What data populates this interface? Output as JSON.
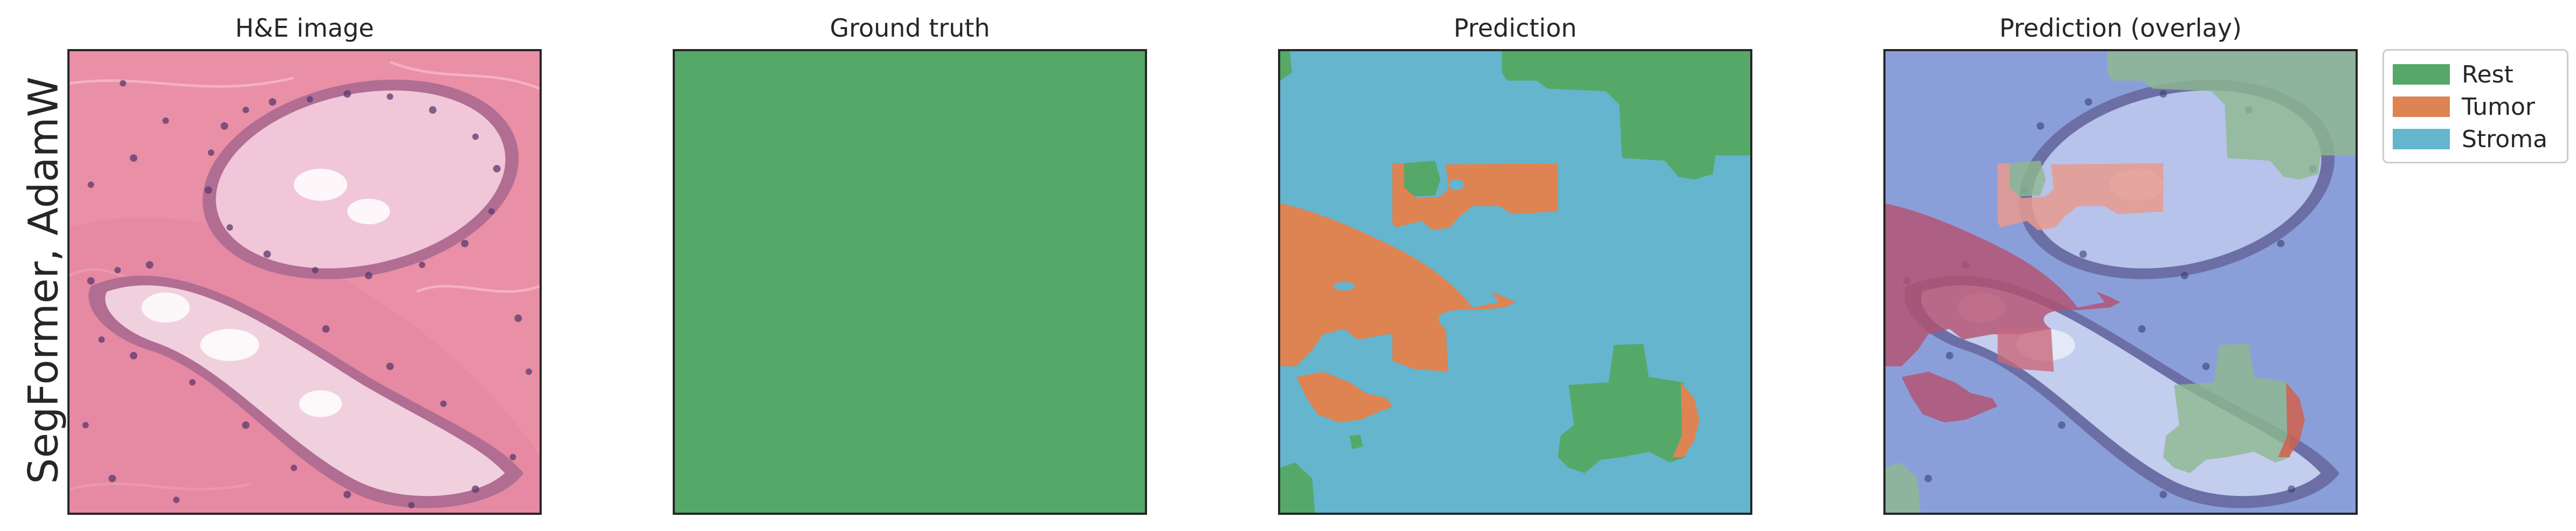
{
  "row_label": "SegFormer, AdamW",
  "panels": {
    "he_title": "H&E image",
    "gt_title": "Ground truth",
    "pred_title": "Prediction",
    "overlay_title": "Prediction (overlay)"
  },
  "legend": {
    "items": [
      {
        "label": "Rest",
        "color": "#55a868"
      },
      {
        "label": "Tumor",
        "color": "#dd8452"
      },
      {
        "label": "Stroma",
        "color": "#64b5cd"
      }
    ]
  }
}
